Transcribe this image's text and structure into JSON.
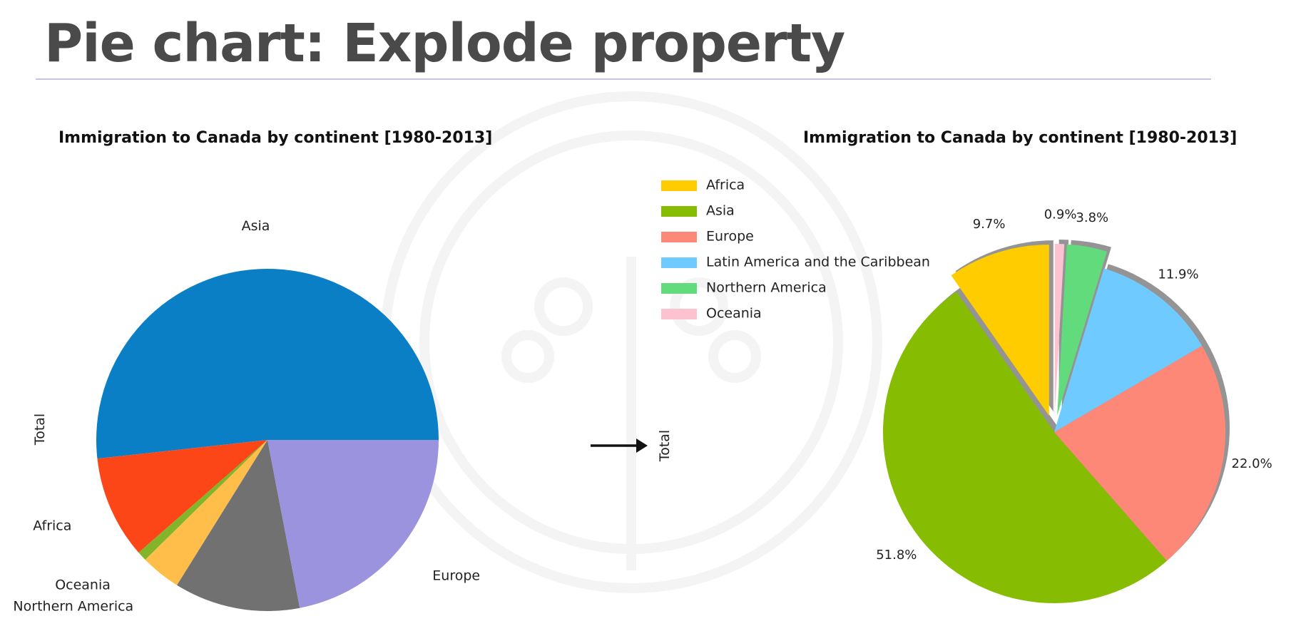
{
  "slide": {
    "title": "Pie chart: Explode property"
  },
  "chart_data": [
    {
      "type": "pie",
      "title": "Immigration to Canada by continent [1980-2013]",
      "ylabel": "Total",
      "categories": [
        "Asia",
        "Africa",
        "Oceania",
        "Northern America",
        "Latin America and the Caribbean",
        "Europe"
      ],
      "values": [
        51.8,
        9.7,
        0.9,
        3.8,
        11.9,
        22.0
      ],
      "colors": [
        "#0a7fc6",
        "#fc4617",
        "#82b52a",
        "#ffbd4a",
        "#717171",
        "#9c93de"
      ],
      "start_angle_deg": 0,
      "direction": "counterclockwise",
      "show_percentages": false
    },
    {
      "type": "pie",
      "title": "Immigration to Canada by continent [1980-2013]",
      "ylabel": "Total",
      "categories": [
        "Africa",
        "Asia",
        "Europe",
        "Latin America and the Caribbean",
        "Northern America",
        "Oceania"
      ],
      "values": [
        9.7,
        51.8,
        22.0,
        11.9,
        3.8,
        0.9
      ],
      "percent_labels": [
        "9.7%",
        "51.8%",
        "22.0%",
        "11.9%",
        "3.8%",
        "0.9%"
      ],
      "colors": [
        "#ffcc00",
        "#86bd02",
        "#fd8877",
        "#6fcbff",
        "#62db7d",
        "#fdc2cf"
      ],
      "explode": [
        0.1,
        0,
        0,
        0,
        0.1,
        0.1
      ],
      "start_angle_deg": 90,
      "direction": "counterclockwise",
      "shadow": true,
      "legend": {
        "position": "upper-left",
        "labels": [
          "Africa",
          "Asia",
          "Europe",
          "Latin America and the Caribbean",
          "Northern America",
          "Oceania"
        ]
      }
    }
  ]
}
